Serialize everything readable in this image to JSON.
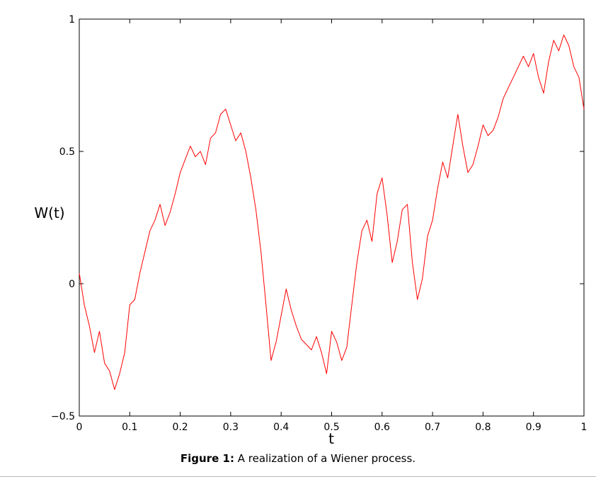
{
  "figure": {
    "caption_label": "Figure 1:",
    "caption_text": " A realization of a Wiener process."
  },
  "chart_data": {
    "type": "line",
    "title": "",
    "xlabel": "t",
    "ylabel": "W(t)",
    "xlim": [
      0,
      1
    ],
    "ylim": [
      -0.5,
      1
    ],
    "xticks": [
      0,
      0.1,
      0.2,
      0.3,
      0.4,
      0.5,
      0.6,
      0.7,
      0.8,
      0.9,
      1
    ],
    "xtick_labels": [
      "0",
      "0.1",
      "0.2",
      "0.3",
      "0.4",
      "0.5",
      "0.6",
      "0.7",
      "0.8",
      "0.9",
      "1"
    ],
    "yticks": [
      -0.5,
      0,
      0.5,
      1
    ],
    "ytick_labels": [
      "−0.5",
      "0",
      "0.5",
      "1"
    ],
    "grid": false,
    "legend": null,
    "series_color": "#ff0000",
    "series": [
      {
        "x": [
          0,
          0.01,
          0.02,
          0.03,
          0.04,
          0.05,
          0.06,
          0.07,
          0.08,
          0.09,
          0.1,
          0.11,
          0.12,
          0.13,
          0.14,
          0.15,
          0.16,
          0.17,
          0.18,
          0.19,
          0.2,
          0.21,
          0.22,
          0.23,
          0.24,
          0.25,
          0.26,
          0.27,
          0.28,
          0.29,
          0.3,
          0.31,
          0.32,
          0.33,
          0.34,
          0.35,
          0.36,
          0.37,
          0.38,
          0.39,
          0.4,
          0.41,
          0.42,
          0.43,
          0.44,
          0.45,
          0.46,
          0.47,
          0.48,
          0.49,
          0.5,
          0.51,
          0.52,
          0.53,
          0.54,
          0.55,
          0.56,
          0.57,
          0.58,
          0.59,
          0.6,
          0.61,
          0.62,
          0.63,
          0.64,
          0.65,
          0.66,
          0.67,
          0.68,
          0.69,
          0.7,
          0.71,
          0.72,
          0.73,
          0.74,
          0.75,
          0.76,
          0.77,
          0.78,
          0.79,
          0.8,
          0.81,
          0.82,
          0.83,
          0.84,
          0.85,
          0.86,
          0.87,
          0.88,
          0.89,
          0.9,
          0.91,
          0.92,
          0.93,
          0.94,
          0.95,
          0.96,
          0.97,
          0.98,
          0.99,
          1.0
        ],
        "y": [
          0.04,
          -0.08,
          -0.16,
          -0.26,
          -0.18,
          -0.3,
          -0.33,
          -0.4,
          -0.34,
          -0.26,
          -0.08,
          -0.06,
          0.04,
          0.12,
          0.2,
          0.24,
          0.3,
          0.22,
          0.27,
          0.34,
          0.42,
          0.47,
          0.52,
          0.48,
          0.5,
          0.45,
          0.55,
          0.57,
          0.64,
          0.66,
          0.6,
          0.54,
          0.57,
          0.5,
          0.4,
          0.28,
          0.12,
          -0.08,
          -0.29,
          -0.22,
          -0.12,
          -0.02,
          -0.1,
          -0.16,
          -0.21,
          -0.23,
          -0.25,
          -0.2,
          -0.26,
          -0.34,
          -0.18,
          -0.22,
          -0.29,
          -0.24,
          -0.08,
          0.08,
          0.2,
          0.24,
          0.16,
          0.34,
          0.4,
          0.26,
          0.08,
          0.16,
          0.28,
          0.3,
          0.08,
          -0.06,
          0.02,
          0.18,
          0.24,
          0.36,
          0.46,
          0.4,
          0.52,
          0.64,
          0.52,
          0.42,
          0.45,
          0.52,
          0.6,
          0.56,
          0.58,
          0.63,
          0.7,
          0.74,
          0.78,
          0.82,
          0.86,
          0.82,
          0.87,
          0.78,
          0.72,
          0.84,
          0.92,
          0.88,
          0.94,
          0.9,
          0.82,
          0.78,
          0.66
        ]
      }
    ]
  }
}
